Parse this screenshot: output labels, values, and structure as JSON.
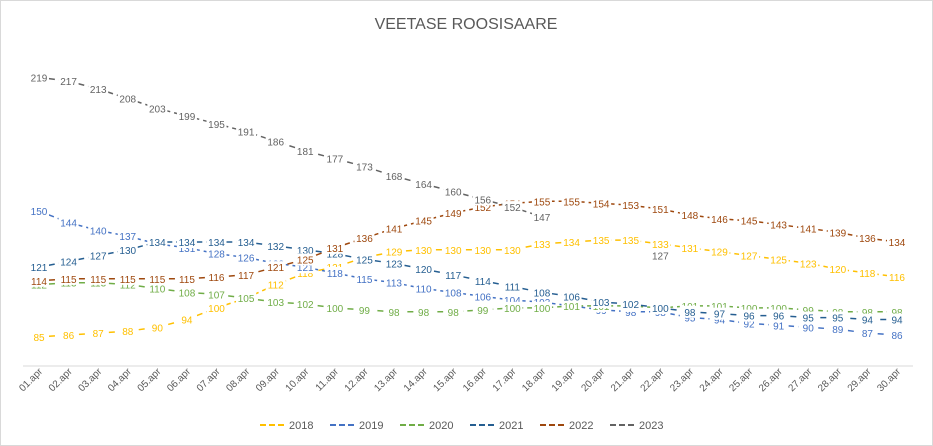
{
  "chart_data": {
    "type": "line",
    "title": "VEETASE ROOSISAARE",
    "xlabel": "",
    "ylabel": "",
    "ylim": [
      70,
      230
    ],
    "grid": false,
    "legend_position": "bottom",
    "categories": [
      "01.apr",
      "02.apr",
      "03.apr",
      "04.apr",
      "05.apr",
      "06.apr",
      "07.apr",
      "08.apr",
      "09.apr",
      "10.apr",
      "11.apr",
      "12.apr",
      "13.apr",
      "14.apr",
      "15.apr",
      "16.apr",
      "17.apr",
      "18.apr",
      "19.apr",
      "20.apr",
      "21.apr",
      "22.apr",
      "23.apr",
      "24.apr",
      "25.apr",
      "26.apr",
      "27.apr",
      "28.apr",
      "29.apr",
      "30.apr"
    ],
    "series": [
      {
        "name": "2018",
        "color": "#FFC000",
        "dashed": true,
        "values": [
          85,
          86,
          87,
          88,
          90,
          94,
          100,
          105,
          112,
          118,
          121,
          126,
          129,
          130,
          130,
          130,
          130,
          133,
          134,
          135,
          135,
          133,
          131,
          129,
          127,
          125,
          123,
          120,
          118,
          116
        ]
      },
      {
        "name": "2019",
        "color": "#4472C4",
        "dashed": true,
        "values": [
          150,
          144,
          140,
          137,
          133,
          131,
          128,
          126,
          123,
          121,
          118,
          115,
          113,
          110,
          108,
          106,
          104,
          103,
          101,
          99,
          98,
          98,
          95,
          94,
          92,
          91,
          90,
          89,
          87,
          86
        ]
      },
      {
        "name": "2020",
        "color": "#70AD47",
        "dashed": true,
        "values": [
          112,
          113,
          113,
          112,
          110,
          108,
          107,
          105,
          103,
          102,
          100,
          99,
          98,
          98,
          98,
          99,
          100,
          100,
          101,
          101,
          101,
          100,
          101,
          101,
          100,
          100,
          99,
          98,
          98,
          98
        ]
      },
      {
        "name": "2021",
        "color": "#255E91",
        "dashed": true,
        "values": [
          121,
          124,
          127,
          130,
          134,
          134,
          134,
          134,
          132,
          130,
          128,
          125,
          123,
          120,
          117,
          114,
          111,
          108,
          106,
          103,
          102,
          100,
          98,
          97,
          96,
          96,
          95,
          95,
          94,
          94
        ]
      },
      {
        "name": "2022",
        "color": "#9E480E",
        "dashed": true,
        "values": [
          114,
          115,
          115,
          115,
          115,
          115,
          116,
          117,
          121,
          125,
          131,
          136,
          141,
          145,
          149,
          152,
          154,
          155,
          155,
          154,
          153,
          151,
          148,
          146,
          145,
          143,
          141,
          139,
          136,
          134
        ]
      },
      {
        "name": "2023",
        "color": "#636363",
        "dashed": true,
        "values": [
          219,
          217,
          213,
          208,
          203,
          199,
          195,
          191,
          186,
          181,
          177,
          173,
          168,
          164,
          160,
          156,
          152,
          147,
          null,
          null,
          null,
          127,
          null,
          null,
          null,
          null,
          null,
          null,
          null,
          null
        ]
      }
    ]
  }
}
